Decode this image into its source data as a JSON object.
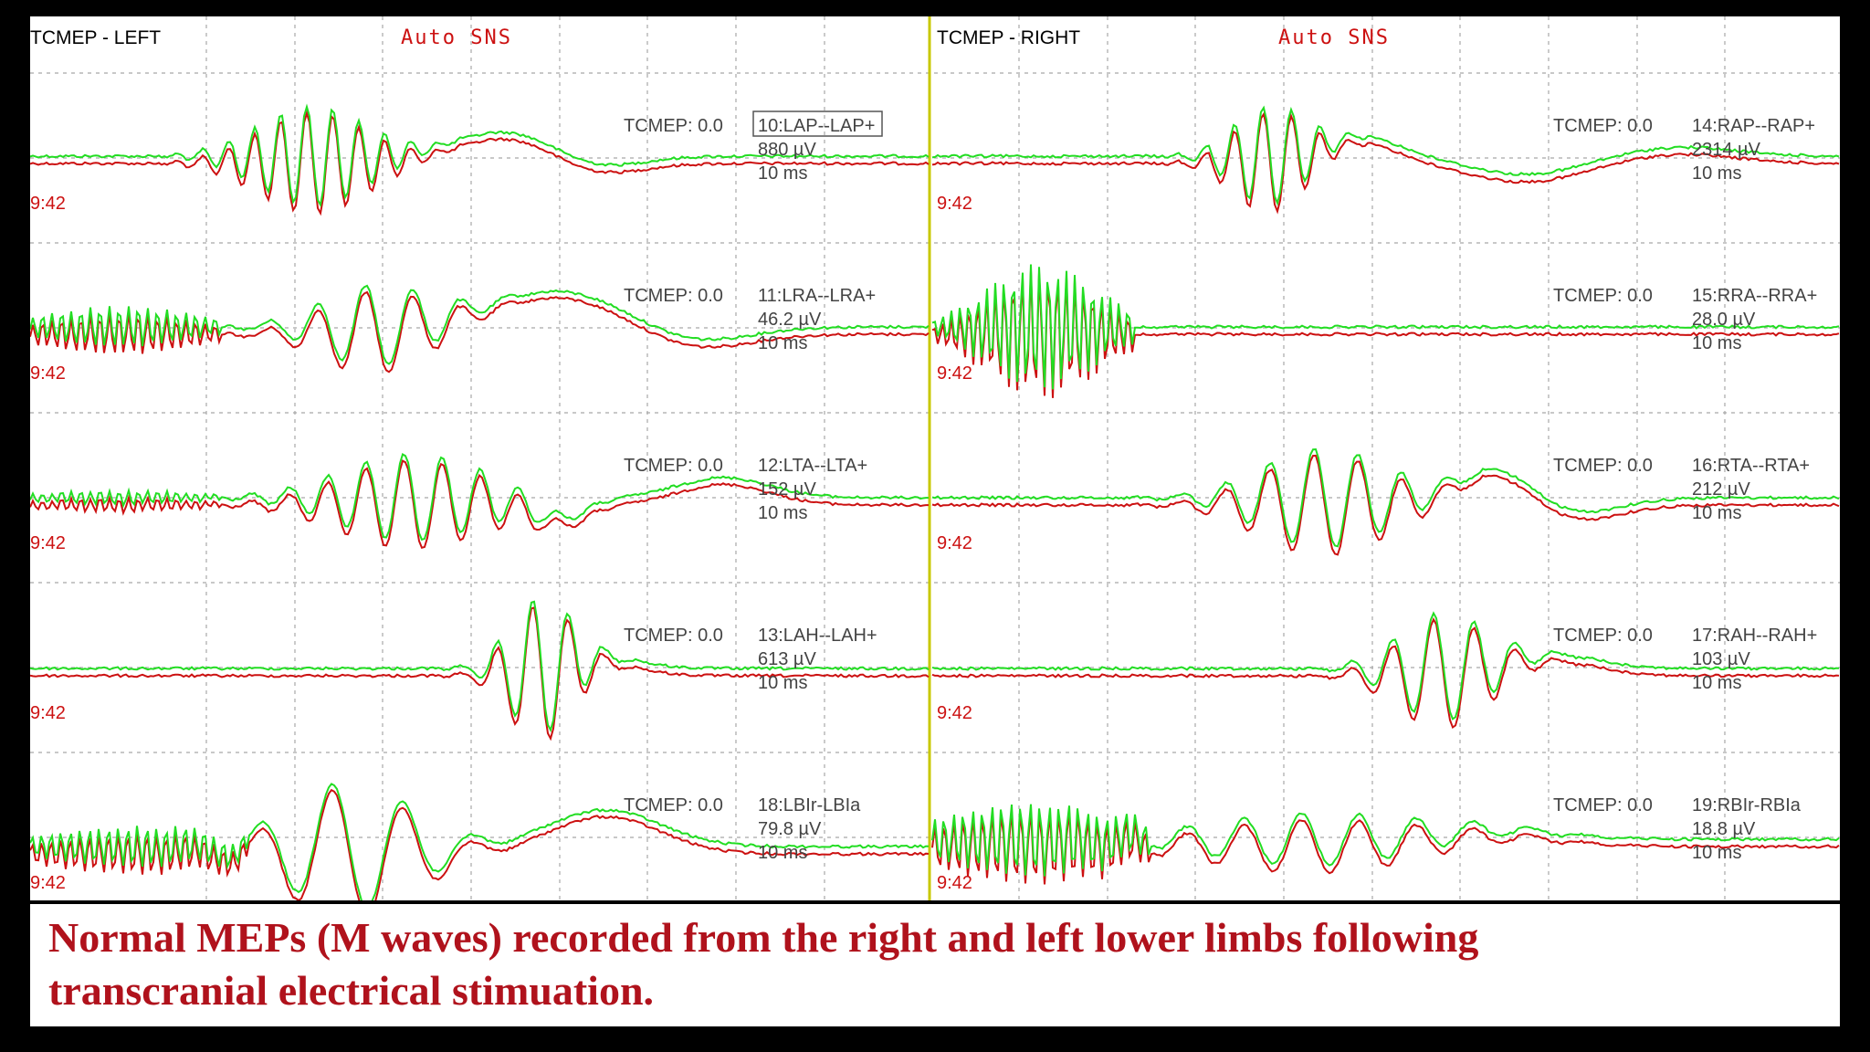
{
  "panels": [
    {
      "title": "TCMEP - LEFT",
      "mode": "Auto SNS",
      "channels": [
        {
          "tag": "TCMEP: 0.0",
          "label": "10:LAP--LAP+",
          "amp": "880 µV",
          "time": "9:42",
          "scale": "10 ms",
          "boxed": true
        },
        {
          "tag": "TCMEP: 0.0",
          "label": "11:LRA--LRA+",
          "amp": "46.2 µV",
          "time": "9:42",
          "scale": "10 ms",
          "boxed": false
        },
        {
          "tag": "TCMEP: 0.0",
          "label": "12:LTA--LTA+",
          "amp": "152 µV",
          "time": "9:42",
          "scale": "10 ms",
          "boxed": false
        },
        {
          "tag": "TCMEP: 0.0",
          "label": "13:LAH--LAH+",
          "amp": "613 µV",
          "time": "9:42",
          "scale": "10 ms",
          "boxed": false
        },
        {
          "tag": "TCMEP: 0.0",
          "label": "18:LBIr-LBIa",
          "amp": "79.8 µV",
          "time": "9:42",
          "scale": "10 ms",
          "boxed": false
        }
      ]
    },
    {
      "title": "TCMEP - RIGHT",
      "mode": "Auto SNS",
      "channels": [
        {
          "tag": "TCMEP: 0.0",
          "label": "14:RAP--RAP+",
          "amp": "2314 µV",
          "time": "9:42",
          "scale": "10 ms",
          "boxed": false
        },
        {
          "tag": "TCMEP: 0.0",
          "label": "15:RRA--RRA+",
          "amp": "28.0 µV",
          "time": "9:42",
          "scale": "10 ms",
          "boxed": false
        },
        {
          "tag": "TCMEP: 0.0",
          "label": "16:RTA--RTA+",
          "amp": "212 µV",
          "time": "9:42",
          "scale": "10 ms",
          "boxed": false
        },
        {
          "tag": "TCMEP: 0.0",
          "label": "17:RAH--RAH+",
          "amp": "103 µV",
          "time": "9:42",
          "scale": "10 ms",
          "boxed": false
        },
        {
          "tag": "TCMEP: 0.0",
          "label": "19:RBIr-RBIa",
          "amp": "18.8 µV",
          "time": "9:42",
          "scale": "10 ms",
          "boxed": false
        }
      ]
    }
  ],
  "caption": {
    "line1": "Normal MEPs (M waves) recorded from the right and left lower limbs following",
    "line2": "transcranial electrical stimuation."
  },
  "colors": {
    "trace_current": "#22dd22",
    "trace_reference": "#cc1111",
    "mode_text": "#cc1111",
    "time_text": "#cc1111",
    "grid": "#a8a8a8",
    "divider": "#c8c800",
    "caption_text": "#b0121c"
  }
}
